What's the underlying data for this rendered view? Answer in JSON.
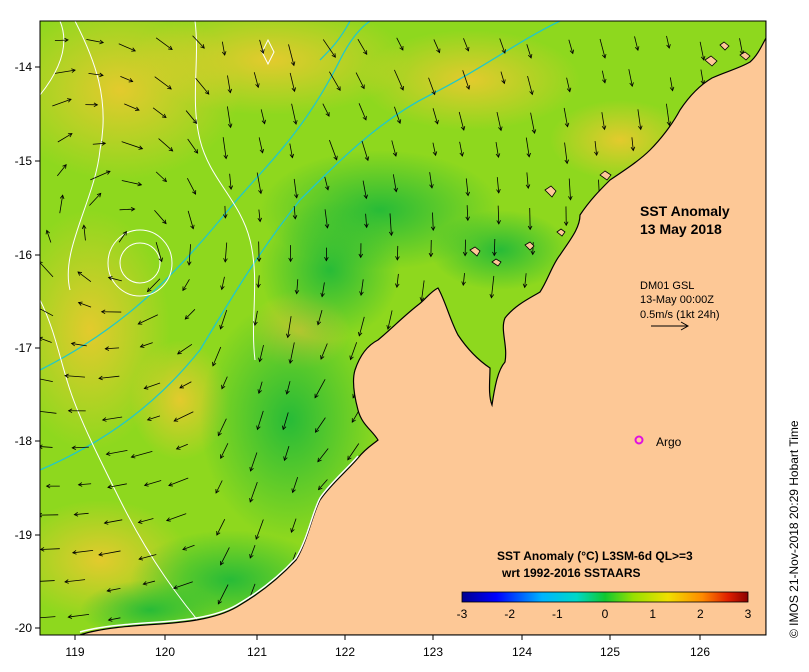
{
  "map": {
    "title_line1": "SST Anomaly",
    "title_line2": "13 May 2018",
    "current_source": "DM01 GSL",
    "current_time": "13-May 00:00Z",
    "current_scale": "0.5m/s (1kt 24h)",
    "argo_label": "Argo",
    "credit": "© IMOS 21-Nov-2018 20:29 Hobart Time",
    "legend_title_line1": "SST Anomaly (°C) L3SM-6d QL>=3",
    "legend_title_line2": "wrt 1992-2016 SSTAARS",
    "x_ticks": [
      "119",
      "120",
      "121",
      "122",
      "123",
      "124",
      "125",
      "126"
    ],
    "y_ticks": [
      "-14",
      "-15",
      "-16",
      "-17",
      "-18",
      "-19",
      "-20"
    ],
    "legend_ticks": [
      "-3",
      "-2",
      "-1",
      "0",
      "1",
      "2",
      "3"
    ],
    "colors": {
      "land": "#fdc896",
      "ocean_base": "#8ed81e",
      "anomaly_warm": "#e8d020",
      "anomaly_cool": "#2fc43a",
      "argo": "#e010e0",
      "contour": "#ffffff",
      "isobath": "#22c8c8"
    },
    "icons": {
      "argo_marker": "circle-marker-icon",
      "scale_arrow": "arrow-right-icon"
    }
  }
}
